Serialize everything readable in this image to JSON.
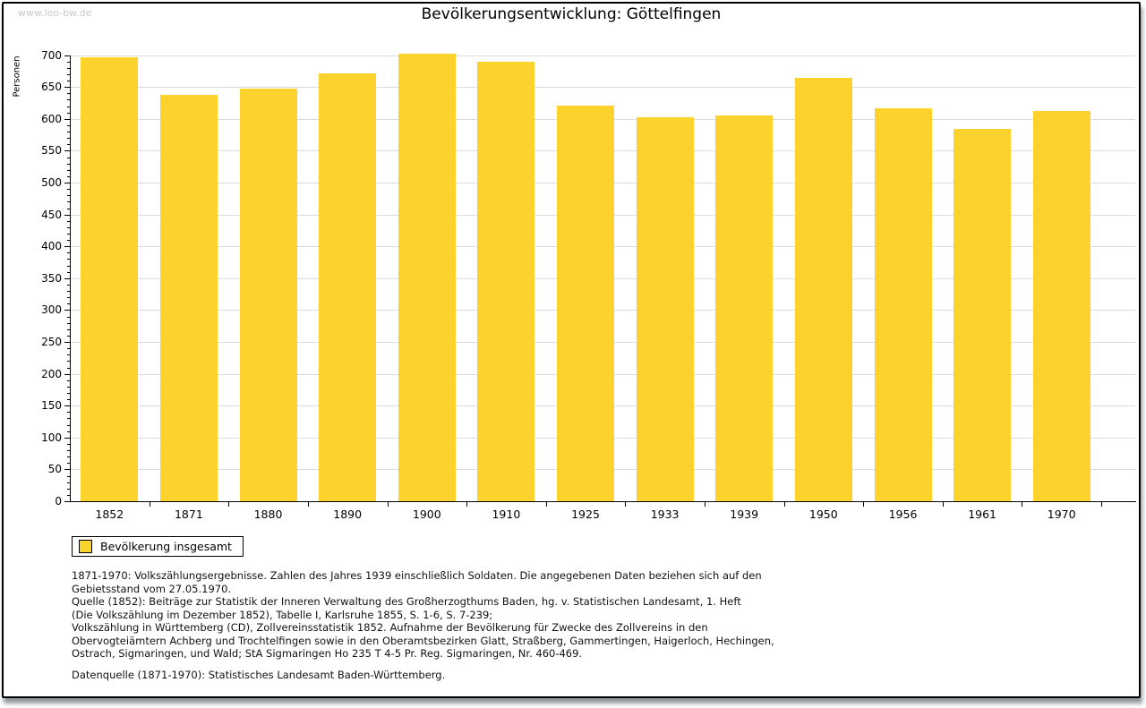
{
  "page": {
    "watermark": "www.leo-bw.de",
    "title": "Bevölkerungsentwicklung: Göttelfingen"
  },
  "chart_data": {
    "type": "bar",
    "title": "Bevölkerungsentwicklung: Göttelfingen",
    "xlabel": "",
    "ylabel": "Personen",
    "categories": [
      "1852",
      "1871",
      "1880",
      "1890",
      "1900",
      "1910",
      "1925",
      "1933",
      "1939",
      "1950",
      "1956",
      "1961",
      "1970"
    ],
    "series": [
      {
        "name": "Bevölkerung insgesamt",
        "values": [
          697,
          638,
          647,
          672,
          702,
          689,
          621,
          602,
          605,
          665,
          616,
          584,
          613
        ]
      }
    ],
    "ylim": [
      0,
      700
    ],
    "ytick_step": 50,
    "y_minor_tick_step": 10,
    "grid": true,
    "legend_position": "bottom-left",
    "bar_color": "#FCD32D",
    "grid_color": "#dcdcdc",
    "axis_color": "#000000"
  },
  "legend": {
    "label": "Bevölkerung insgesamt"
  },
  "footer": {
    "source_note": "1871-1970: Volkszählungsergebnisse. Zahlen des Jahres 1939 einschließlich Soldaten. Die angegebenen Daten beziehen sich auf den\nGebietsstand vom 27.05.1970.\nQuelle (1852): Beiträge zur Statistik der Inneren Verwaltung des Großherzogthums Baden, hg. v. Statistischen Landesamt, 1. Heft\n(Die Volkszählung im Dezember 1852), Tabelle I, Karlsruhe 1855, S. 1-6, S. 7-239;\nVolkszählung in Württemberg (CD), Zollvereinsstatistik 1852. Aufnahme der Bevölkerung für Zwecke des Zollvereins in den\nObervogteiämtern Achberg und Trochtelfingen sowie in den Oberamtsbezirken Glatt, Straßberg, Gammertingen, Haigerloch, Hechingen,\nOstrach, Sigmaringen, und Wald; StA Sigmaringen Ho 235 T 4-5 Pr. Reg. Sigmaringen, Nr. 460-469.",
    "data_source": "Datenquelle (1871-1970): Statistisches Landesamt Baden-Württemberg."
  }
}
